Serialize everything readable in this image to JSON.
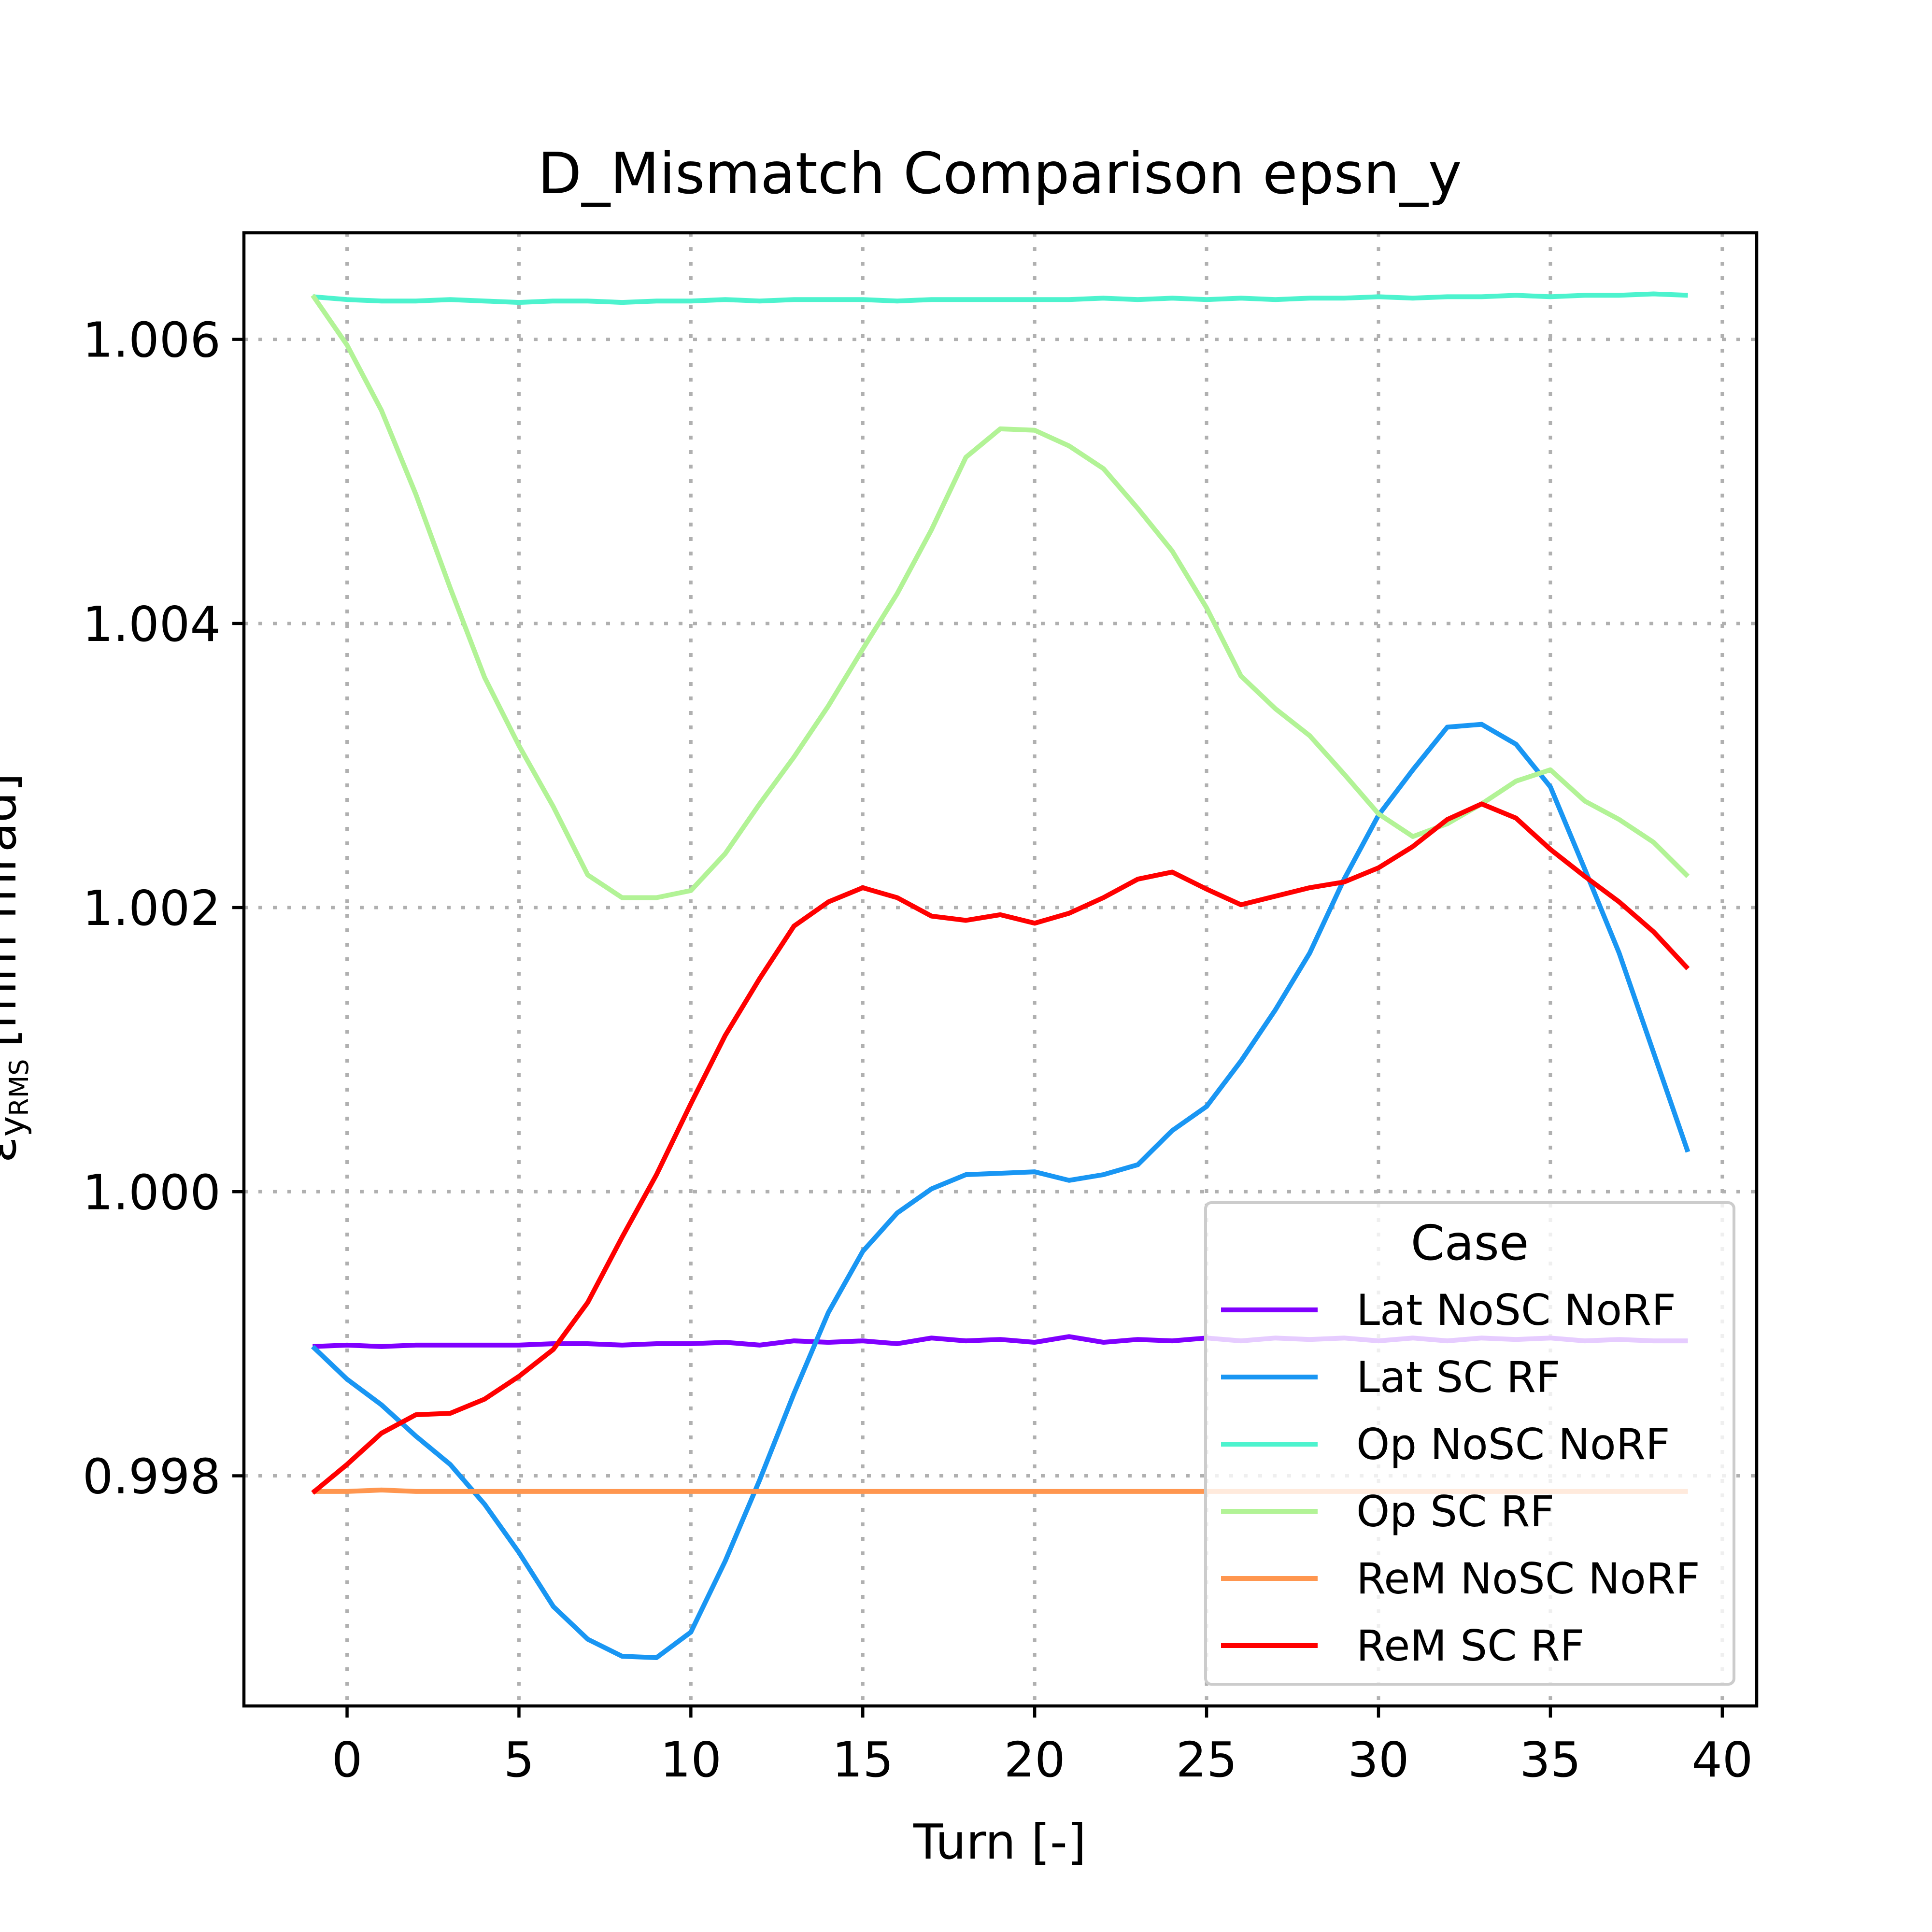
{
  "chart_data": {
    "type": "line",
    "title": "D_Mismatch Comparison epsn_y",
    "xlabel": "Turn [-]",
    "ylabel": "ε",
    "ylabel_sub": "y",
    "ylabel_subsub": "RMS",
    "ylabel_units": "[mm mrad]",
    "xlim": [
      -3,
      41
    ],
    "ylim": [
      0.99638,
      1.00675
    ],
    "xticks": [
      0,
      5,
      10,
      15,
      20,
      25,
      30,
      35,
      40
    ],
    "xtick_labels": [
      "0",
      "5",
      "10",
      "15",
      "20",
      "25",
      "30",
      "35",
      "40"
    ],
    "yticks": [
      0.998,
      1.0,
      1.002,
      1.004,
      1.006
    ],
    "ytick_labels": [
      "0.998",
      "1.000",
      "1.002",
      "1.004",
      "1.006"
    ],
    "grid": true,
    "legend": {
      "title": "Case",
      "placement": "lower-right"
    },
    "x": [
      -1,
      0,
      1,
      2,
      3,
      4,
      5,
      6,
      7,
      8,
      9,
      10,
      11,
      12,
      13,
      14,
      15,
      16,
      17,
      18,
      19,
      20,
      21,
      22,
      23,
      24,
      25,
      26,
      27,
      28,
      29,
      30,
      31,
      32,
      33,
      34,
      35,
      36,
      37,
      38,
      39
    ],
    "series": [
      {
        "name": "Lat NoSC NoRF",
        "color": "#8000ff",
        "values": [
          0.99891,
          0.99892,
          0.99891,
          0.99892,
          0.99892,
          0.99892,
          0.99892,
          0.99893,
          0.99893,
          0.99892,
          0.99893,
          0.99893,
          0.99894,
          0.99892,
          0.99895,
          0.99894,
          0.99895,
          0.99893,
          0.99897,
          0.99895,
          0.99896,
          0.99894,
          0.99898,
          0.99894,
          0.99896,
          0.99895,
          0.99897,
          0.99895,
          0.99897,
          0.99896,
          0.99897,
          0.99895,
          0.99897,
          0.99895,
          0.99897,
          0.99896,
          0.99897,
          0.99895,
          0.99896,
          0.99895,
          0.99895
        ]
      },
      {
        "name": "Lat SC RF",
        "color": "#1996f3",
        "values": [
          0.99891,
          0.99868,
          0.9985,
          0.99828,
          0.99808,
          0.9978,
          0.99746,
          0.99708,
          0.99685,
          0.99673,
          0.99672,
          0.9969,
          0.9974,
          0.99797,
          0.99858,
          0.99915,
          0.99958,
          0.99985,
          1.00002,
          1.00012,
          1.00013,
          1.00014,
          1.00008,
          1.00012,
          1.00019,
          1.00043,
          1.0006,
          1.00092,
          1.00128,
          1.00168,
          1.0022,
          1.00265,
          1.00297,
          1.00327,
          1.00329,
          1.00315,
          1.00285,
          1.00227,
          1.00168,
          1.00098,
          1.00028
        ]
      },
      {
        "name": "Op NoSC NoRF",
        "color": "#4df3ce",
        "values": [
          1.0063,
          1.00628,
          1.00627,
          1.00627,
          1.00628,
          1.00627,
          1.00626,
          1.00627,
          1.00627,
          1.00626,
          1.00627,
          1.00627,
          1.00628,
          1.00627,
          1.00628,
          1.00628,
          1.00628,
          1.00627,
          1.00628,
          1.00628,
          1.00628,
          1.00628,
          1.00628,
          1.00629,
          1.00628,
          1.00629,
          1.00628,
          1.00629,
          1.00628,
          1.00629,
          1.00629,
          1.0063,
          1.00629,
          1.0063,
          1.0063,
          1.00631,
          1.0063,
          1.00631,
          1.00631,
          1.00632,
          1.00631
        ]
      },
      {
        "name": "Op SC RF",
        "color": "#b2f396",
        "values": [
          1.00631,
          1.00596,
          1.0055,
          1.00491,
          1.00425,
          1.00362,
          1.00314,
          1.00271,
          1.00223,
          1.00207,
          1.00207,
          1.00212,
          1.00238,
          1.00273,
          1.00306,
          1.00342,
          1.00382,
          1.00421,
          1.00466,
          1.00517,
          1.00537,
          1.00536,
          1.00525,
          1.00509,
          1.00481,
          1.00451,
          1.00411,
          1.00363,
          1.0034,
          1.00321,
          1.00294,
          1.00266,
          1.0025,
          1.00259,
          1.00273,
          1.00289,
          1.00297,
          1.00275,
          1.00262,
          1.00246,
          1.00222
        ]
      },
      {
        "name": "ReM NoSC NoRF",
        "color": "#ff964f",
        "values": [
          0.99789,
          0.99789,
          0.9979,
          0.99789,
          0.99789,
          0.99789,
          0.99789,
          0.99789,
          0.99789,
          0.99789,
          0.99789,
          0.99789,
          0.99789,
          0.99789,
          0.99789,
          0.99789,
          0.99789,
          0.99789,
          0.99789,
          0.99789,
          0.99789,
          0.99789,
          0.99789,
          0.99789,
          0.99789,
          0.99789,
          0.99789,
          0.99789,
          0.99789,
          0.99789,
          0.99789,
          0.99789,
          0.99789,
          0.99789,
          0.99789,
          0.99789,
          0.99789,
          0.99789,
          0.99789,
          0.99789,
          0.99789
        ]
      },
      {
        "name": "ReM SC RF",
        "color": "#ff0000",
        "values": [
          0.99788,
          0.99808,
          0.9983,
          0.99843,
          0.99844,
          0.99854,
          0.9987,
          0.99889,
          0.99922,
          0.99968,
          1.00012,
          1.00062,
          1.0011,
          1.0015,
          1.00187,
          1.00204,
          1.00214,
          1.00207,
          1.00194,
          1.00191,
          1.00195,
          1.00189,
          1.00196,
          1.00207,
          1.0022,
          1.00225,
          1.00213,
          1.00202,
          1.00208,
          1.00214,
          1.00218,
          1.00228,
          1.00243,
          1.00262,
          1.00273,
          1.00263,
          1.00241,
          1.00222,
          1.00204,
          1.00183,
          1.00157
        ]
      }
    ]
  }
}
